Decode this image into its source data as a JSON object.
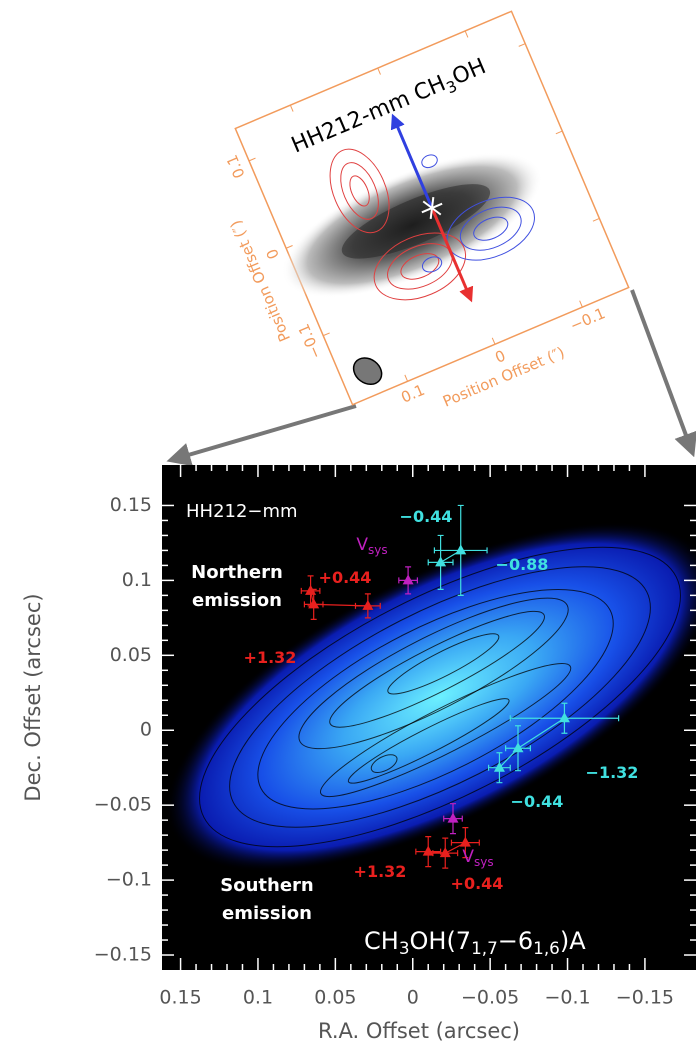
{
  "chart_data": [
    {
      "type": "inset-map",
      "title_parts": [
        "HH212-mm  CH",
        "3",
        "OH"
      ],
      "x_label": "Position Offset (″)",
      "y_label": "Position Offset (″)",
      "xlim": [
        0.163,
        -0.153
      ],
      "ylim": [
        -0.179,
        0.137
      ],
      "xticks": [
        0.1,
        0,
        {
          "value": -0.1,
          "label": "−0.1"
        }
      ],
      "yticks": [
        {
          "value": -0.1,
          "label": "−0.1"
        },
        0,
        0.1
      ],
      "axis_color": "#f29b5c"
    },
    {
      "type": "scatter",
      "x_label": "R.A. Offset (arcsec)",
      "y_label": "Dec. Offset (arcsec)",
      "xlim": [
        0.162,
        -0.183
      ],
      "ylim": [
        -0.16,
        0.177
      ],
      "xticks": [
        0.15,
        0.1,
        0.05,
        0,
        {
          "value": -0.05,
          "label": "−0.05"
        },
        {
          "value": -0.1,
          "label": "−0.1"
        },
        {
          "value": -0.15,
          "label": "−0.15"
        }
      ],
      "yticks": [
        {
          "value": -0.15,
          "label": "−0.15"
        },
        {
          "value": -0.1,
          "label": "−0.1"
        },
        {
          "value": -0.05,
          "label": "−0.05"
        },
        0,
        0.05,
        0.1,
        0.15
      ],
      "series": [
        {
          "color": "#e8201e",
          "x": [
            0.066,
            0.064,
            0.029
          ],
          "values": [
            0.093,
            0.084,
            0.083
          ],
          "xerr": [
            0.006,
            0.006,
            0.008
          ],
          "yerr": [
            0.01,
            0.01,
            0.008
          ]
        },
        {
          "color": "#c020c0",
          "x": [
            0.003
          ],
          "values": [
            0.1
          ],
          "xerr": [
            0.006
          ],
          "yerr": [
            0.009
          ]
        },
        {
          "color": "#40e0e0",
          "x": [
            -0.018,
            -0.031
          ],
          "values": [
            0.112,
            0.12
          ],
          "xerr": [
            0.008,
            0.017
          ],
          "yerr": [
            0.018,
            0.03
          ]
        },
        {
          "color": "#40e0e0",
          "x": [
            -0.098,
            -0.068,
            -0.056
          ],
          "values": [
            0.008,
            -0.012,
            -0.025
          ],
          "xerr": [
            0.035,
            0.008,
            0.007
          ],
          "yerr": [
            0.01,
            0.015,
            0.01
          ]
        },
        {
          "color": "#c020c0",
          "x": [
            -0.026
          ],
          "values": [
            -0.059
          ],
          "xerr": [
            0.006
          ],
          "yerr": [
            0.01
          ]
        },
        {
          "color": "#e8201e",
          "x": [
            -0.034,
            -0.021,
            -0.01
          ],
          "values": [
            -0.075,
            -0.082,
            -0.081
          ],
          "xerr": [
            0.009,
            0.008,
            0.008
          ],
          "yerr": [
            0.01,
            0.01,
            0.01
          ]
        }
      ],
      "annotations": [
        {
          "text": "+1.32",
          "color": "#e8201e"
        },
        {
          "text": "+0.44",
          "color": "#e8201e"
        },
        {
          "text": "V",
          "subscript": "sys",
          "color": "#c020c0"
        },
        {
          "text": "−0.44",
          "color": "#40e0e0"
        },
        {
          "text": "−0.88",
          "color": "#40e0e0"
        },
        {
          "text": "−1.32",
          "color": "#40e0e0"
        },
        {
          "text": "−0.44",
          "color": "#40e0e0"
        },
        {
          "text": "V",
          "subscript": "sys",
          "color": "#c020c0"
        },
        {
          "text": "+1.32",
          "color": "#e8201e"
        },
        {
          "text": "+0.44",
          "color": "#e8201e"
        }
      ],
      "source_label": "HH212−mm",
      "north_label": [
        "Northern",
        "emission"
      ],
      "south_label": [
        "Southern",
        "emission"
      ],
      "line_label_parts": [
        "CH",
        "3",
        "OH(7",
        "1,7",
        "−6",
        "1,6",
        ")A"
      ]
    }
  ]
}
